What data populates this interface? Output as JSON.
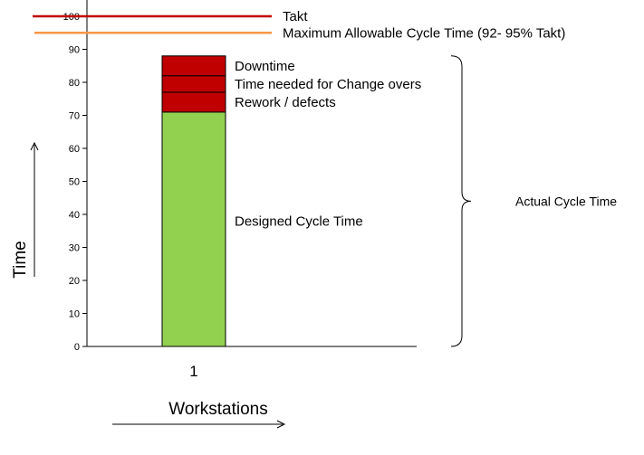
{
  "chart_data": {
    "type": "bar",
    "stacked": true,
    "title": "",
    "xlabel": "Workstations",
    "ylabel": "Time",
    "ylim": [
      0,
      100
    ],
    "y_ticks": [
      0,
      10,
      20,
      30,
      40,
      50,
      60,
      70,
      80,
      90,
      100
    ],
    "grid": false,
    "categories": [
      "1"
    ],
    "series": [
      {
        "name": "Designed Cycle Time",
        "values": [
          71
        ],
        "color": "#92D050"
      },
      {
        "name": "Rework / defects",
        "values": [
          6
        ],
        "color": "#C00000"
      },
      {
        "name": "Time needed for Change overs",
        "values": [
          5
        ],
        "color": "#C00000"
      },
      {
        "name": "Downtime",
        "values": [
          6
        ],
        "color": "#C00000"
      }
    ],
    "reference_lines": [
      {
        "label": "Takt",
        "value": 100,
        "color": "#C00000"
      },
      {
        "label": "Maximum Allowable Cycle Time (92- 95% Takt)",
        "value": 95,
        "color": "#F79646"
      }
    ],
    "bracket": {
      "label": "Actual Cycle Time",
      "from": 0,
      "to": 88
    }
  }
}
